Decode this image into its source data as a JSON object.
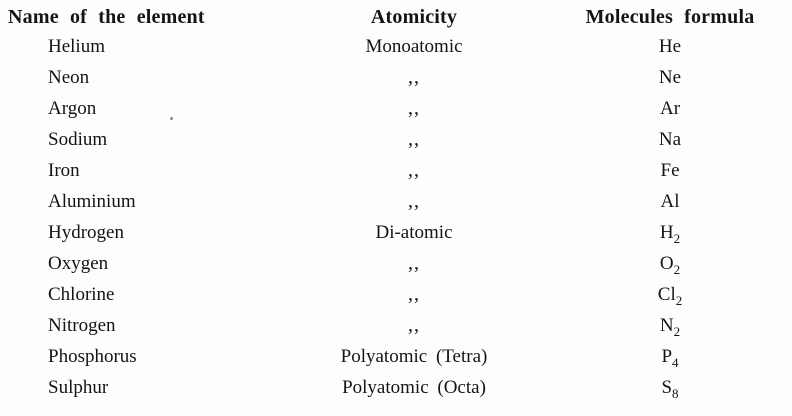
{
  "table": {
    "headers": {
      "name": "Name of the element",
      "atomicity": "Atomicity",
      "formula": "Molecules formula"
    },
    "rows": [
      {
        "name": "Helium",
        "atomicity": "Monoatomic",
        "formula_base": "He",
        "formula_sub": ""
      },
      {
        "name": "Neon",
        "atomicity": ",,",
        "formula_base": "Ne",
        "formula_sub": ""
      },
      {
        "name": "Argon",
        "atomicity": ",,",
        "formula_base": "Ar",
        "formula_sub": ""
      },
      {
        "name": "Sodium",
        "atomicity": ",,",
        "formula_base": "Na",
        "formula_sub": ""
      },
      {
        "name": "Iron",
        "atomicity": ",,",
        "formula_base": "Fe",
        "formula_sub": ""
      },
      {
        "name": "Aluminium",
        "atomicity": ",,",
        "formula_base": "Al",
        "formula_sub": ""
      },
      {
        "name": "Hydrogen",
        "atomicity": "Di-atomic",
        "formula_base": "H",
        "formula_sub": "2"
      },
      {
        "name": "Oxygen",
        "atomicity": ",,",
        "formula_base": "O",
        "formula_sub": "2"
      },
      {
        "name": "Chlorine",
        "atomicity": ",,",
        "formula_base": "Cl",
        "formula_sub": "2"
      },
      {
        "name": "Nitrogen",
        "atomicity": ",,",
        "formula_base": "N",
        "formula_sub": "2"
      },
      {
        "name": "Phosphorus",
        "atomicity": "Polyatomic (Tetra)",
        "formula_base": "P",
        "formula_sub": "4"
      },
      {
        "name": "Sulphur",
        "atomicity": "Polyatomic (Octa)",
        "formula_base": "S",
        "formula_sub": "8"
      }
    ],
    "text_color": "#141414",
    "background_color": "#fdfdfc"
  }
}
